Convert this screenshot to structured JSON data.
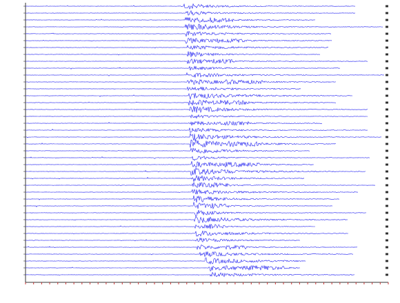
{
  "chart_data": {
    "type": "record-section",
    "xlim": [
      0,
      45
    ],
    "xticks": [
      0,
      1,
      2,
      3,
      4,
      5,
      6,
      7,
      8,
      9,
      10,
      11,
      12,
      13,
      14,
      15,
      16,
      17,
      18,
      19,
      20,
      21,
      22,
      23,
      24,
      25,
      26,
      27,
      28,
      29,
      30,
      31,
      32,
      33,
      34,
      35,
      36,
      37,
      38,
      39,
      40,
      41,
      42,
      43,
      44,
      45
    ],
    "color": "#1c1cf0",
    "onsets": [
      19.6,
      19.9,
      19.8,
      19.8,
      19.9,
      19.8,
      20.1,
      20.1,
      20.1,
      20.2,
      20.0,
      20.1,
      20.1,
      20.2,
      20.2,
      20.3,
      20.3,
      20.4,
      20.3,
      20.4,
      20.4,
      20.5,
      20.6,
      20.6,
      20.5,
      20.6,
      20.7,
      20.6,
      20.8,
      20.8,
      20.9,
      20.9,
      21.0,
      21.0,
      21.1,
      21.3,
      21.6,
      22.3,
      22.7,
      22.9
    ]
  }
}
